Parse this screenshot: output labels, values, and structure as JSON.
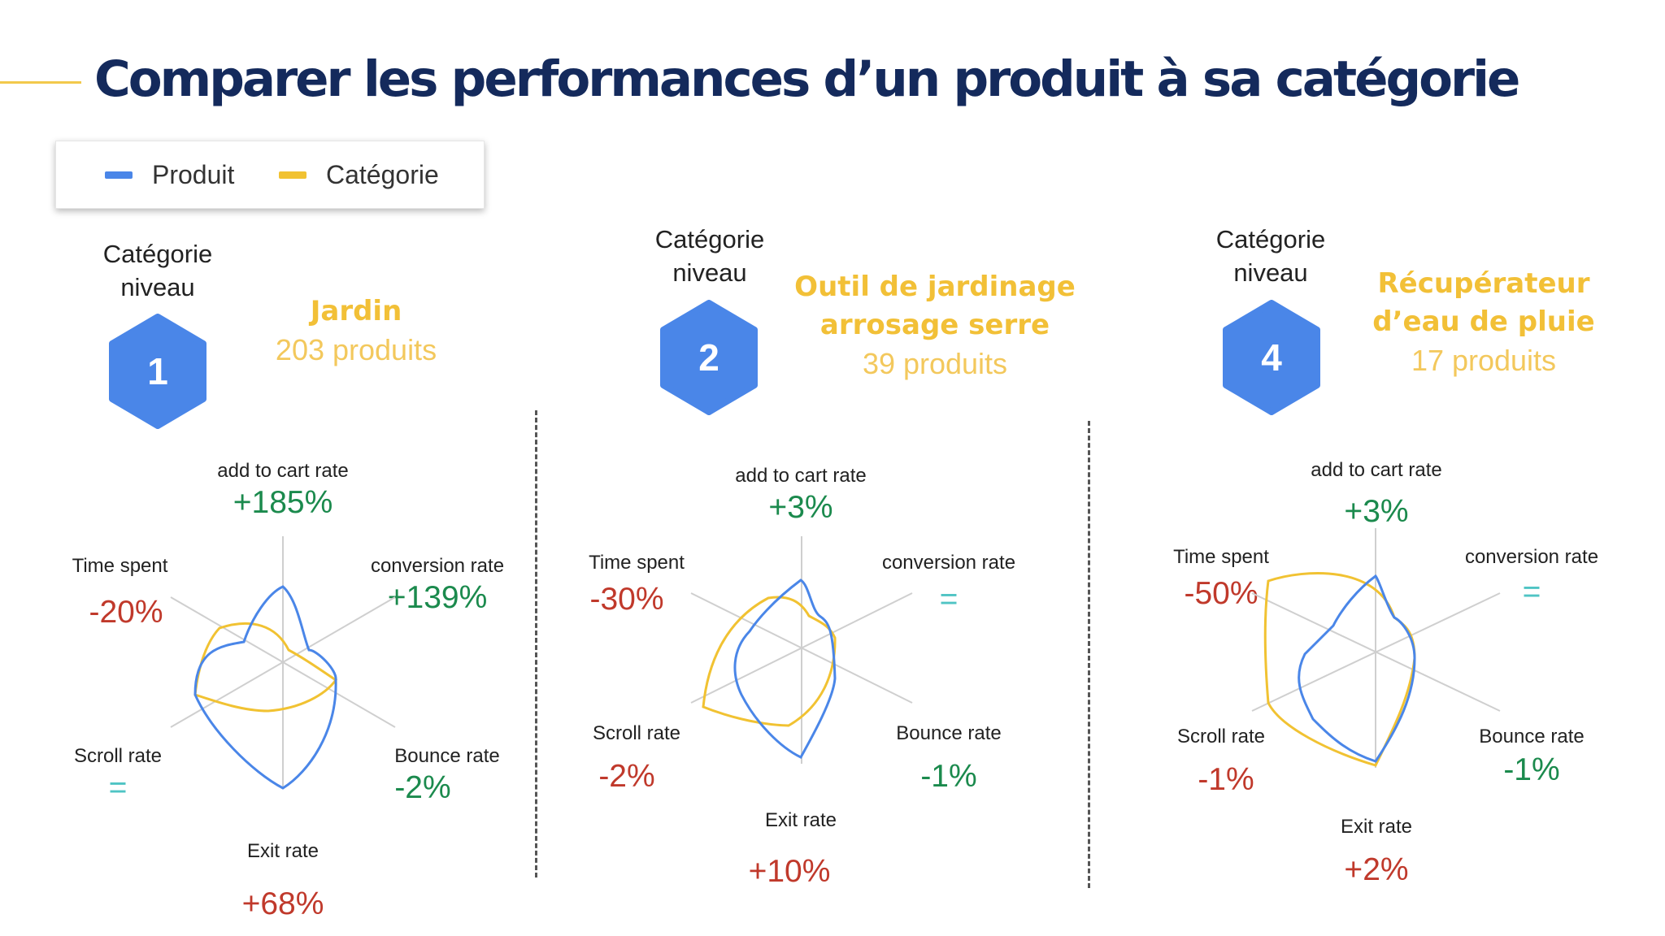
{
  "title": "Comparer les performances d’un produit à sa catégorie",
  "legend": [
    {
      "label": "Produit",
      "color": "#4a86e8"
    },
    {
      "label": "Catégorie",
      "color": "#f1c232"
    }
  ],
  "colors": {
    "produit": "#4a86e8",
    "categorie": "#f1c232",
    "hex": "#4a86e8",
    "positive": "#1b8a4d",
    "negative": "#c0392b",
    "neutral": "#4fc4c4"
  },
  "sections": [
    {
      "niveau_label": "Catégorie\nniveau",
      "level": "1",
      "category_name": "Jardin",
      "product_count": "203  produits",
      "metrics": {
        "add_to_cart": {
          "label": "add to cart rate",
          "value": "+185%"
        },
        "conversion": {
          "label": "conversion rate",
          "value": "+139%"
        },
        "bounce": {
          "label": "Bounce rate",
          "value": "-2%"
        },
        "exit": {
          "label": "Exit rate",
          "value": "+68%"
        },
        "scroll": {
          "label": "Scroll rate",
          "value": "="
        },
        "time": {
          "label": "Time spent",
          "value": "-20%"
        }
      }
    },
    {
      "niveau_label": "Catégorie\nniveau",
      "level": "2",
      "category_name": "Outil de jardinage\narrosage serre",
      "product_count": "39 produits",
      "metrics": {
        "add_to_cart": {
          "label": "add to cart rate",
          "value": "+3%"
        },
        "conversion": {
          "label": "conversion rate",
          "value": "="
        },
        "bounce": {
          "label": "Bounce rate",
          "value": "-1%"
        },
        "exit": {
          "label": "Exit rate",
          "value": "+10%"
        },
        "scroll": {
          "label": "Scroll rate",
          "value": "-2%"
        },
        "time": {
          "label": "Time spent",
          "value": "-30%"
        }
      }
    },
    {
      "niveau_label": "Catégorie\nniveau",
      "level": "4",
      "category_name": "Récupérateur\nd’eau de pluie",
      "product_count": "17 produits",
      "metrics": {
        "add_to_cart": {
          "label": "add to cart rate",
          "value": "+3%"
        },
        "conversion": {
          "label": "conversion rate",
          "value": "="
        },
        "bounce": {
          "label": "Bounce rate",
          "value": "-1%"
        },
        "exit": {
          "label": "Exit rate",
          "value": "+2%"
        },
        "scroll": {
          "label": "Scroll rate",
          "value": "-1%"
        },
        "time": {
          "label": "Time spent",
          "value": "-50%"
        }
      }
    }
  ]
}
